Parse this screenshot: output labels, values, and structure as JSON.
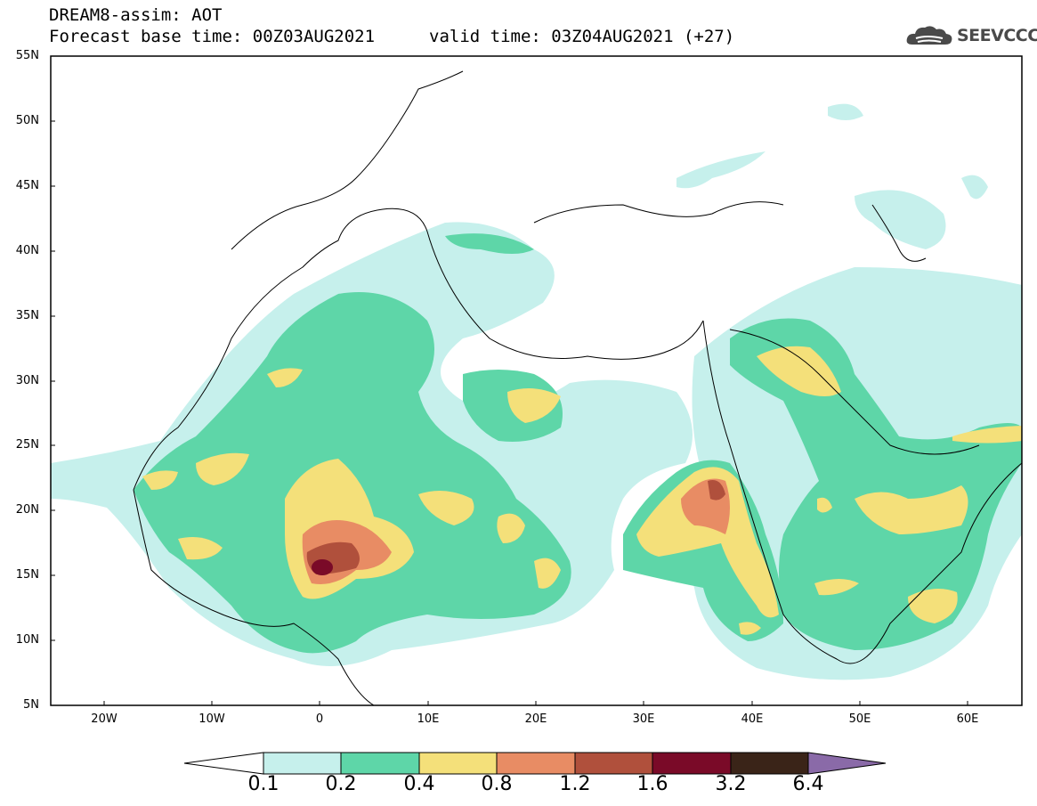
{
  "header": {
    "title": "DREAM8-assim: AOT",
    "base_time": "Forecast base time: 00Z03AUG2021",
    "valid_time": "valid time: 03Z04AUG2021 (+27)",
    "logo_text": "SEEVCCC"
  },
  "map": {
    "lat_labels": [
      "55N",
      "50N",
      "45N",
      "40N",
      "35N",
      "30N",
      "25N",
      "20N",
      "15N",
      "10N",
      "5N"
    ],
    "lon_labels": [
      "20W",
      "10W",
      "0",
      "10E",
      "20E",
      "30E",
      "40E",
      "50E",
      "60E"
    ],
    "extent": {
      "lon": [
        -25,
        65
      ],
      "lat": [
        5,
        55
      ]
    }
  },
  "colorbar": {
    "labels": [
      "0.1",
      "0.2",
      "0.4",
      "0.8",
      "1.2",
      "1.6",
      "3.2",
      "6.4"
    ],
    "colors": [
      "#ffffff",
      "#c6f0ec",
      "#5ed6a8",
      "#f4e07a",
      "#e88c64",
      "#b0503c",
      "#7a0a28",
      "#3a2418",
      "#8a6aa8"
    ]
  }
}
